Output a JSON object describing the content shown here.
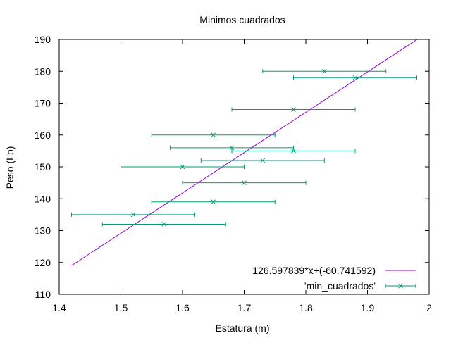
{
  "chart_data": {
    "type": "scatter",
    "title": "Minimos cuadrados",
    "xlabel": "Estatura (m)",
    "ylabel": "Peso (Lb)",
    "xlim": [
      1.4,
      2.0
    ],
    "ylim": [
      110,
      190
    ],
    "xticks": [
      "1.4",
      "1.5",
      "1.6",
      "1.7",
      "1.8",
      "1.9",
      "2"
    ],
    "yticks": [
      "110",
      "120",
      "130",
      "140",
      "150",
      "160",
      "170",
      "180",
      "190"
    ],
    "grid": false,
    "legend_position": "bottom-right",
    "series": [
      {
        "name": "126.597839*x+(-60.741592)",
        "kind": "line",
        "color": "#9400d3",
        "x_range": [
          1.42,
          1.98
        ],
        "slope": 126.597839,
        "intercept": -60.741592
      },
      {
        "name": "'min_cuadrados'",
        "kind": "xerrorbars",
        "color": "#009e73",
        "points": [
          {
            "x": 1.83,
            "y": 180,
            "xerr": 0.1
          },
          {
            "x": 1.88,
            "y": 178,
            "xerr": 0.1
          },
          {
            "x": 1.78,
            "y": 168,
            "xerr": 0.1
          },
          {
            "x": 1.65,
            "y": 160,
            "xerr": 0.1
          },
          {
            "x": 1.68,
            "y": 156,
            "xerr": 0.1
          },
          {
            "x": 1.78,
            "y": 155,
            "xerr": 0.1
          },
          {
            "x": 1.73,
            "y": 152,
            "xerr": 0.1
          },
          {
            "x": 1.6,
            "y": 150,
            "xerr": 0.1
          },
          {
            "x": 1.7,
            "y": 145,
            "xerr": 0.1
          },
          {
            "x": 1.65,
            "y": 139,
            "xerr": 0.1
          },
          {
            "x": 1.52,
            "y": 135,
            "xerr": 0.1
          },
          {
            "x": 1.57,
            "y": 132,
            "xerr": 0.1
          }
        ]
      }
    ]
  }
}
